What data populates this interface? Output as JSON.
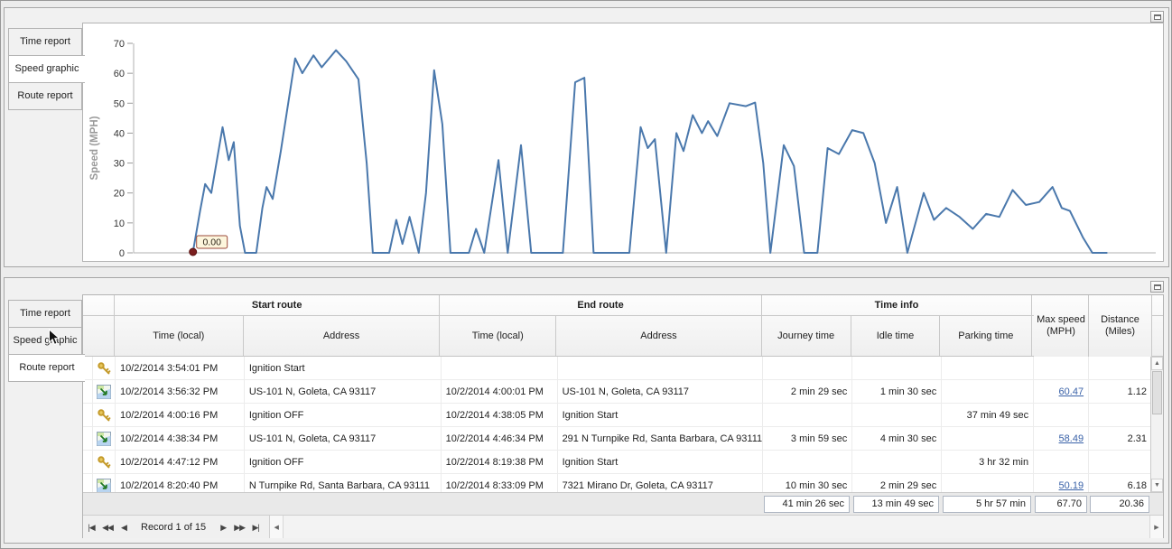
{
  "colors": {
    "chart_line": "#4a78ac",
    "link": "#3a62a8",
    "annotation_bg": "#fdf6dd",
    "annotation_border": "#9c4a3a",
    "start_dot": "#7a1f1f"
  },
  "icons": {
    "up_arrow": "▲",
    "down_arrow": "▼",
    "left_arrow": "◀",
    "right_arrow": "▶"
  },
  "top_panel": {
    "tabs": [
      {
        "label": "Time report",
        "selected": false
      },
      {
        "label": "Speed graphic",
        "selected": true
      },
      {
        "label": "Route report",
        "selected": false
      }
    ]
  },
  "chart_data": {
    "type": "line",
    "title": "",
    "xlabel": "",
    "ylabel": "Speed (MPH)",
    "ylim": [
      0,
      70
    ],
    "yticks": [
      0,
      10,
      20,
      30,
      40,
      50,
      60,
      70
    ],
    "grid": false,
    "x_unit": "percent of plot width (no x tick labels shown)",
    "annotation": {
      "label": "0.00",
      "x": 5.8,
      "y": 0
    },
    "series": [
      {
        "name": "Speed (MPH)",
        "points": [
          [
            5.8,
            0.3
          ],
          [
            6.5,
            14
          ],
          [
            7.0,
            23
          ],
          [
            7.6,
            20
          ],
          [
            8.7,
            42
          ],
          [
            9.3,
            31
          ],
          [
            9.8,
            37
          ],
          [
            10.4,
            9
          ],
          [
            10.9,
            0
          ],
          [
            12.0,
            0
          ],
          [
            12.6,
            15
          ],
          [
            13.0,
            22
          ],
          [
            13.6,
            18
          ],
          [
            14.4,
            34
          ],
          [
            15.8,
            65
          ],
          [
            16.5,
            60
          ],
          [
            17.6,
            66
          ],
          [
            18.4,
            62
          ],
          [
            19.8,
            67.7
          ],
          [
            20.8,
            64
          ],
          [
            22.0,
            58
          ],
          [
            22.8,
            30
          ],
          [
            23.4,
            0
          ],
          [
            25.0,
            0
          ],
          [
            25.7,
            11
          ],
          [
            26.3,
            3
          ],
          [
            27.0,
            12
          ],
          [
            27.9,
            0
          ],
          [
            28.6,
            20
          ],
          [
            29.4,
            61
          ],
          [
            30.2,
            43
          ],
          [
            31.0,
            0
          ],
          [
            32.8,
            0
          ],
          [
            33.5,
            8
          ],
          [
            34.3,
            0
          ],
          [
            35.7,
            31
          ],
          [
            36.6,
            0
          ],
          [
            37.9,
            36
          ],
          [
            38.9,
            0
          ],
          [
            42.0,
            0
          ],
          [
            43.2,
            57
          ],
          [
            44.1,
            58.5
          ],
          [
            45.0,
            0
          ],
          [
            48.5,
            0
          ],
          [
            49.6,
            42
          ],
          [
            50.3,
            35
          ],
          [
            51.0,
            38
          ],
          [
            52.1,
            0
          ],
          [
            53.1,
            40
          ],
          [
            53.8,
            34
          ],
          [
            54.7,
            46
          ],
          [
            55.6,
            40
          ],
          [
            56.2,
            44
          ],
          [
            57.1,
            39
          ],
          [
            58.3,
            50
          ],
          [
            59.9,
            49
          ],
          [
            60.8,
            50.2
          ],
          [
            61.6,
            30
          ],
          [
            62.3,
            0
          ],
          [
            63.6,
            36
          ],
          [
            64.6,
            29
          ],
          [
            65.6,
            0
          ],
          [
            66.9,
            0
          ],
          [
            67.9,
            35
          ],
          [
            69.0,
            33
          ],
          [
            70.3,
            41
          ],
          [
            71.4,
            40
          ],
          [
            72.5,
            30
          ],
          [
            73.6,
            10
          ],
          [
            74.7,
            22
          ],
          [
            75.7,
            0
          ],
          [
            77.3,
            20
          ],
          [
            78.3,
            11
          ],
          [
            79.5,
            15
          ],
          [
            80.8,
            12
          ],
          [
            82.1,
            8
          ],
          [
            83.4,
            13
          ],
          [
            84.7,
            12
          ],
          [
            86.0,
            21
          ],
          [
            87.3,
            16
          ],
          [
            88.6,
            17
          ],
          [
            89.9,
            22
          ],
          [
            90.8,
            15
          ],
          [
            91.6,
            14
          ],
          [
            92.9,
            5
          ],
          [
            93.8,
            0
          ],
          [
            95.2,
            0
          ]
        ]
      }
    ]
  },
  "bottom_panel": {
    "tabs": [
      {
        "label": "Time report",
        "selected": false
      },
      {
        "label": "Speed graphic",
        "selected": false
      },
      {
        "label": "Route report",
        "selected": true
      }
    ],
    "table": {
      "groups": [
        {
          "label": "Start route"
        },
        {
          "label": "End route"
        },
        {
          "label": "Time info"
        }
      ],
      "columns": {
        "start_time": "Time (local)",
        "start_address": "Address",
        "end_time": "Time (local)",
        "end_address": "Address",
        "journey": "Journey time",
        "idle": "Idle time",
        "parking": "Parking time",
        "max_speed": {
          "line1": "Max speed",
          "line2": "(MPH)"
        },
        "distance": {
          "line1": "Distance",
          "line2": "(Miles)"
        }
      },
      "rows": [
        {
          "icon": "key",
          "start_time": "10/2/2014 3:54:01 PM",
          "start_address": "Ignition Start",
          "end_time": "",
          "end_address": "",
          "journey": "",
          "idle": "",
          "parking": "",
          "max_speed": "",
          "distance": ""
        },
        {
          "icon": "route",
          "start_time": "10/2/2014 3:56:32 PM",
          "start_address": "US-101 N, Goleta, CA 93117",
          "end_time": "10/2/2014 4:00:01 PM",
          "end_address": "US-101 N, Goleta, CA 93117",
          "journey": "2 min 29 sec",
          "idle": "1 min 30 sec",
          "parking": "",
          "max_speed": "60.47",
          "distance": "1.12"
        },
        {
          "icon": "key",
          "start_time": "10/2/2014 4:00:16 PM",
          "start_address": "Ignition OFF",
          "end_time": "10/2/2014 4:38:05 PM",
          "end_address": "Ignition Start",
          "journey": "",
          "idle": "",
          "parking": "37 min 49 sec",
          "max_speed": "",
          "distance": ""
        },
        {
          "icon": "route",
          "start_time": "10/2/2014 4:38:34 PM",
          "start_address": "US-101 N, Goleta, CA 93117",
          "end_time": "10/2/2014 4:46:34 PM",
          "end_address": "291 N Turnpike Rd, Santa Barbara, CA 93111",
          "journey": "3 min 59 sec",
          "idle": "4 min 30 sec",
          "parking": "",
          "max_speed": "58.49",
          "distance": "2.31"
        },
        {
          "icon": "key",
          "start_time": "10/2/2014 4:47:12 PM",
          "start_address": "Ignition OFF",
          "end_time": "10/2/2014 8:19:38 PM",
          "end_address": "Ignition Start",
          "journey": "",
          "idle": "",
          "parking": "3 hr 32 min",
          "max_speed": "",
          "distance": ""
        },
        {
          "icon": "route",
          "start_time": "10/2/2014 8:20:40 PM",
          "start_address": "N Turnpike Rd, Santa Barbara, CA 93111",
          "end_time": "10/2/2014 8:33:09 PM",
          "end_address": "7321 Mirano Dr, Goleta, CA 93117",
          "journey": "10 min 30 sec",
          "idle": "2 min 29 sec",
          "parking": "",
          "max_speed": "50.19",
          "distance": "6.18"
        }
      ],
      "summary": {
        "journey": "41 min 26 sec",
        "idle": "13 min 49 sec",
        "parking": "5 hr 57 min",
        "max_speed": "67.70",
        "distance": "20.36"
      }
    },
    "navigator": {
      "record_label": "Record 1 of 15",
      "buttons": [
        {
          "name": "first",
          "glyph": "|◀"
        },
        {
          "name": "previous-page",
          "glyph": "◀◀"
        },
        {
          "name": "previous",
          "glyph": "◀"
        },
        {
          "name": "next",
          "glyph": "▶"
        },
        {
          "name": "next-page",
          "glyph": "▶▶"
        },
        {
          "name": "last",
          "glyph": "▶|"
        }
      ]
    }
  }
}
